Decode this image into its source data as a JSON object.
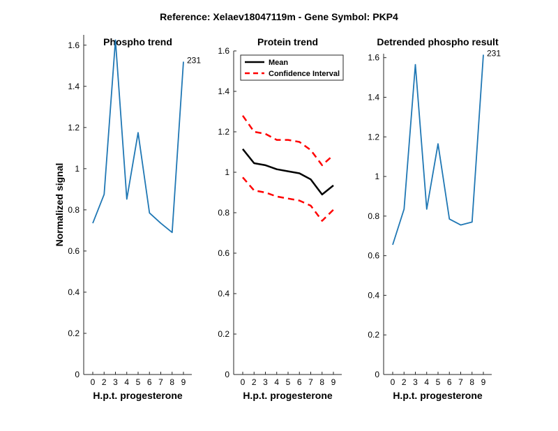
{
  "figure": {
    "suptitle": "Reference:  Xelaev18047119m - Gene Symbol:  PKP4"
  },
  "colors": {
    "phospho": "#1f77b4",
    "mean": "#000000",
    "ci": "#ff0000",
    "axis": "#262626"
  },
  "chart_data": [
    {
      "type": "line",
      "title": "Phospho trend",
      "xlabel": "H.p.t. progesterone",
      "ylabel": "Normalized signal",
      "categories": [
        "0",
        "2",
        "3",
        "4",
        "5",
        "6",
        "7",
        "8",
        "9"
      ],
      "yticks": [
        "0",
        "0.2",
        "0.4",
        "0.6",
        "0.8",
        "1",
        "1.2",
        "1.4",
        "1.6"
      ],
      "ylim": [
        0,
        1.65
      ],
      "series": [
        {
          "values": [
            0.735,
            0.875,
            1.625,
            0.852,
            1.175,
            0.785,
            0.735,
            0.69,
            1.52
          ]
        }
      ],
      "annotation": {
        "text": "231",
        "index": 8
      }
    },
    {
      "type": "line",
      "title": "Protein trend",
      "xlabel": "H.p.t. progesterone",
      "ylabel": "",
      "categories": [
        "0",
        "2",
        "3",
        "4",
        "5",
        "6",
        "7",
        "8",
        "9"
      ],
      "yticks": [
        "0",
        "0.2",
        "0.4",
        "0.6",
        "0.8",
        "1",
        "1.2",
        "1.4",
        "1.6"
      ],
      "ylim": [
        0,
        1.6
      ],
      "legend_position": "top-left",
      "series": [
        {
          "name": "Mean",
          "values": [
            1.115,
            1.045,
            1.035,
            1.015,
            1.005,
            0.995,
            0.965,
            0.89,
            0.935
          ]
        },
        {
          "name": "Confidence Interval",
          "values": [
            1.28,
            1.2,
            1.19,
            1.16,
            1.16,
            1.15,
            1.11,
            1.035,
            1.085
          ]
        },
        {
          "name": "",
          "values": [
            0.975,
            0.91,
            0.9,
            0.88,
            0.87,
            0.86,
            0.835,
            0.76,
            0.815
          ]
        }
      ]
    },
    {
      "type": "line",
      "title": "Detrended phospho result",
      "xlabel": "H.p.t. progesterone",
      "ylabel": "",
      "categories": [
        "0",
        "2",
        "3",
        "4",
        "5",
        "6",
        "7",
        "8",
        "9"
      ],
      "yticks": [
        "0",
        "0.2",
        "0.4",
        "0.6",
        "0.8",
        "1",
        "1.2",
        "1.4",
        "1.6"
      ],
      "ylim": [
        0,
        1.62
      ],
      "series": [
        {
          "values": [
            0.655,
            0.835,
            1.565,
            0.835,
            1.165,
            0.785,
            0.755,
            0.77,
            1.615
          ]
        }
      ],
      "annotation": {
        "text": "231",
        "index": 8
      }
    }
  ]
}
